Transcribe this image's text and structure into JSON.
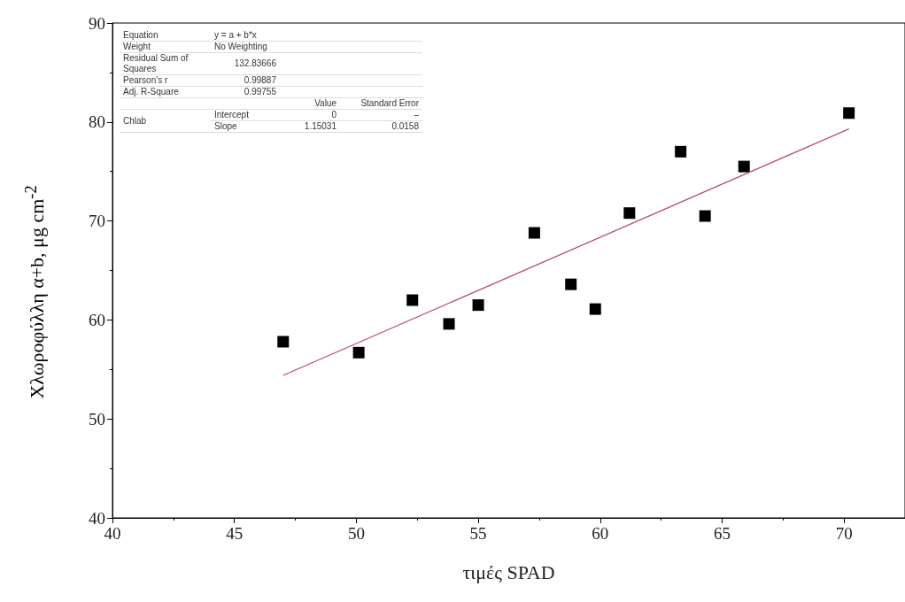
{
  "chart_data": {
    "type": "scatter",
    "xlabel": "τιμές SPAD",
    "ylabel": "Χλωροφύλλη α+b, μg cm$^{-2}$",
    "xlim": [
      40,
      72.5
    ],
    "xticks": [
      40,
      45,
      50,
      55,
      60,
      65,
      70
    ],
    "ylim": [
      40,
      90
    ],
    "yticks": [
      40,
      50,
      60,
      70,
      80,
      90
    ],
    "grid": false,
    "series": [
      {
        "color": "#000000",
        "marker": "square",
        "x": [
          47.0,
          50.1,
          52.3,
          53.8,
          55.0,
          57.3,
          58.8,
          59.8,
          61.2,
          63.3,
          64.3,
          65.9,
          70.2
        ],
        "values": [
          57.8,
          56.7,
          62.0,
          59.6,
          61.5,
          68.8,
          63.6,
          61.1,
          70.8,
          77.0,
          70.5,
          75.5,
          80.9
        ]
      },
      {
        "type": "line",
        "color": "#b8505e",
        "marker": "none",
        "line_style": "solid",
        "x": [
          47.0,
          70.2
        ],
        "values": [
          54.4,
          79.3
        ]
      }
    ],
    "annotations": [
      "Equation",
      "y = a + b*x",
      "Weight",
      "No Weighting",
      "Residual Sum of Squares",
      "132.83666",
      "Pearson's r",
      "0.99887",
      "Adj. R-Square",
      "0.99755",
      "Value",
      "Standard Error",
      "Chlab",
      "Intercept",
      "0",
      "–",
      "Slope",
      "1.15031",
      "0.0158"
    ]
  }
}
